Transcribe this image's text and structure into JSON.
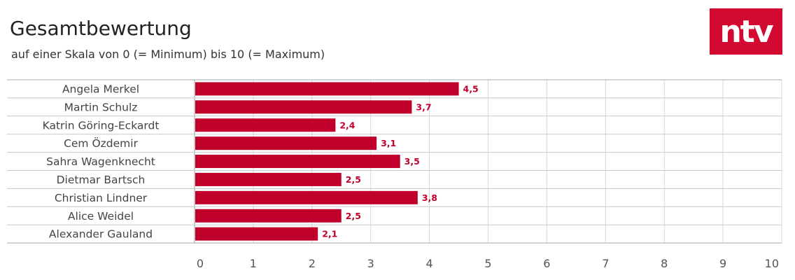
{
  "brand": {
    "logo_text": "ntv",
    "logo_color": "#d20a32"
  },
  "colors": {
    "bar": "#c0002a",
    "label": "#c0002a",
    "grid": "#d7d7d7",
    "row_line": "#c8c8c8"
  },
  "chart_data": {
    "type": "bar",
    "orientation": "horizontal",
    "title": "Gesamtbewertung",
    "subtitle": "auf einer Skala von 0 (= Minimum) bis 10 (= Maximum)",
    "categories": [
      "Angela Merkel",
      "Martin Schulz",
      "Katrin Göring-Eckardt",
      "Cem Özdemir",
      "Sahra Wagenknecht",
      "Dietmar Bartsch",
      "Christian Lindner",
      "Alice Weidel",
      "Alexander Gauland"
    ],
    "values": [
      4.5,
      3.7,
      2.4,
      3.1,
      3.5,
      2.5,
      3.8,
      2.5,
      2.1
    ],
    "value_labels": [
      "4,5",
      "3,7",
      "2,4",
      "3,1",
      "3,5",
      "2,5",
      "3,8",
      "2,5",
      "2,1"
    ],
    "xlim": [
      0,
      10
    ],
    "xticks": [
      0,
      1,
      2,
      3,
      4,
      5,
      6,
      7,
      8,
      9,
      10
    ],
    "xtick_labels": [
      "0",
      "1",
      "2",
      "3",
      "4",
      "5",
      "6",
      "7",
      "8",
      "9",
      "10"
    ],
    "grid": true,
    "legend": "none"
  }
}
